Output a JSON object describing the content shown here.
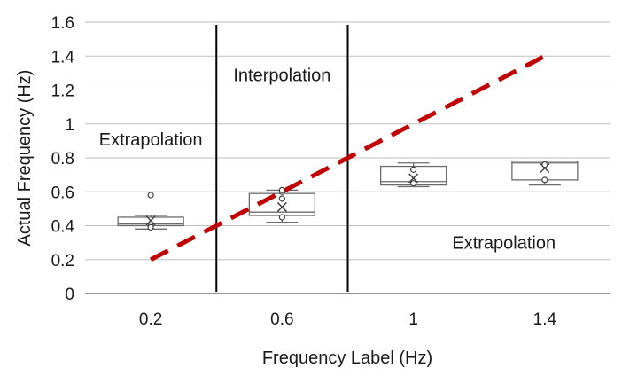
{
  "chart_data": {
    "type": "box",
    "xlabel": "Frequency Label (Hz)",
    "ylabel": "Actual Frequency (Hz)",
    "categories": [
      "0.2",
      "0.6",
      "1",
      "1.4"
    ],
    "ylim": [
      0,
      1.6
    ],
    "yticks": [
      0,
      0.2,
      0.4,
      0.6,
      0.8,
      1,
      1.2,
      1.4,
      1.6
    ],
    "ytick_labels": [
      "0",
      "0.2",
      "0.4",
      "0.6",
      "0.8",
      "1",
      "1.2",
      "1.4",
      "1.6"
    ],
    "grid": true,
    "boxes": [
      {
        "category": "0.2",
        "min": 0.38,
        "q1": 0.4,
        "median": 0.41,
        "q3": 0.45,
        "max": 0.46,
        "mean": 0.43,
        "points": [
          0.58,
          0.4,
          0.39
        ]
      },
      {
        "category": "0.6",
        "min": 0.42,
        "q1": 0.46,
        "median": 0.48,
        "q3": 0.59,
        "max": 0.61,
        "mean": 0.51,
        "points": [
          0.6,
          0.56,
          0.45,
          0.61
        ]
      },
      {
        "category": "1",
        "min": 0.63,
        "q1": 0.64,
        "median": 0.66,
        "q3": 0.75,
        "max": 0.77,
        "mean": 0.68,
        "points": [
          0.73,
          0.65
        ]
      },
      {
        "category": "1.4",
        "min": 0.64,
        "q1": 0.67,
        "median": 0.77,
        "q3": 0.78,
        "max": 0.78,
        "mean": 0.74,
        "points": [
          0.67,
          0.76
        ]
      }
    ],
    "reference_line": {
      "from": [
        0.2,
        0.2
      ],
      "to": [
        1.4,
        1.4
      ],
      "color": "#c00000",
      "style": "dashed"
    },
    "region_dividers": [
      0.4,
      0.8
    ],
    "annotations": [
      {
        "text": "Extrapolation",
        "region": "left",
        "y": 0.91
      },
      {
        "text": "Interpolation",
        "region": "middle",
        "y": 1.29
      },
      {
        "text": "Extrapolation",
        "region": "right",
        "y": 0.3
      }
    ],
    "colors": {
      "box": "#6b6b6b",
      "grid": "#bfbfbf",
      "divider": "#000000",
      "ref": "#c00000"
    }
  }
}
